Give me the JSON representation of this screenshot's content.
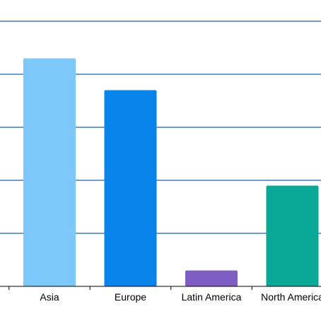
{
  "chart_data": {
    "type": "bar",
    "categories": [
      "Asia",
      "Europe",
      "Latin America",
      "North America"
    ],
    "values": [
      43,
      37,
      3,
      19
    ],
    "colors": [
      "#7cc8fb",
      "#0984ea",
      "#7e5ec2",
      "#0aa897"
    ],
    "ylim": [
      0,
      50
    ],
    "grid": true,
    "grid_color": "#1f5fb5",
    "axis_color": "#000000"
  }
}
